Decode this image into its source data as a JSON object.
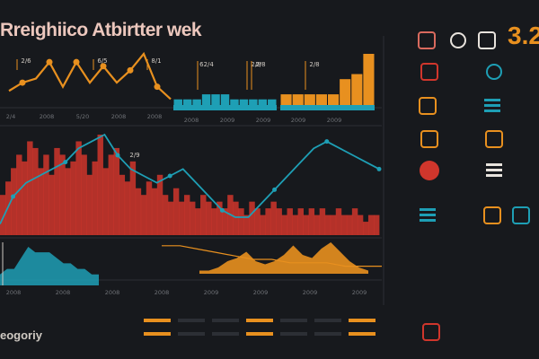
{
  "title": "Rreighiico Atbirtter wek",
  "corner_number": "3.2",
  "footer_label": "eogoriy",
  "colors": {
    "background": "#17191d",
    "title": "#ecc7bd",
    "orange": "#e8901f",
    "red": "#d0362c",
    "teal": "#1e9fb5",
    "light": "#cfc9c2",
    "muted": "#6f7277",
    "grid": "#2c2f35"
  },
  "chart_data": [
    {
      "type": "line",
      "panel": "top-left",
      "series": [
        {
          "color": "#e8901f",
          "values": [
            3,
            5,
            6,
            10,
            4,
            10,
            5,
            9,
            5,
            8,
            12,
            4,
            1
          ]
        }
      ],
      "data_labels": [
        "2/6",
        "6/5",
        "8/1"
      ],
      "tick_labels": [
        "2/4",
        "2008",
        "5/20",
        "2008",
        "2008"
      ]
    },
    {
      "type": "bar",
      "panel": "top-middle",
      "series": [
        {
          "color": "#1e9fb5",
          "values": [
            2,
            2,
            2,
            3,
            3,
            3,
            2,
            2,
            2,
            2,
            2
          ]
        }
      ],
      "data_labels": [
        "62/4",
        "2/8"
      ],
      "tick_labels": [
        "2008",
        "2009",
        "2009"
      ]
    },
    {
      "type": "bar",
      "panel": "top-right",
      "series": [
        {
          "color": "#e8901f",
          "values": [
            3,
            3,
            3,
            3,
            3,
            6,
            7,
            11
          ]
        }
      ],
      "data_labels": [
        "2/8",
        "2/8"
      ],
      "tick_labels": [
        "2009",
        "2009"
      ]
    },
    {
      "type": "area",
      "panel": "middle",
      "series": [
        {
          "color": "#d0362c",
          "values": [
            6,
            8,
            10,
            12,
            11,
            14,
            13,
            10,
            12,
            9,
            13,
            12,
            10,
            11,
            14,
            12,
            9,
            11,
            15,
            10,
            12,
            13,
            9,
            8,
            11,
            7,
            6,
            8,
            7,
            9,
            6,
            5,
            7,
            5,
            6,
            5,
            4,
            6,
            5,
            4,
            5,
            4,
            6,
            5,
            4,
            3,
            5,
            4,
            3,
            4,
            5,
            4,
            3,
            4,
            3,
            4,
            3,
            4,
            3,
            4,
            3,
            3,
            4,
            3,
            3,
            4,
            3,
            2,
            3,
            3
          ]
        }
      ]
    },
    {
      "type": "line",
      "panel": "middle",
      "series": [
        {
          "color": "#1e9fb5",
          "values": [
            2,
            6,
            8,
            9,
            10,
            11,
            13,
            14,
            15,
            12,
            10,
            9,
            8,
            9,
            10,
            8,
            6,
            4,
            3,
            3,
            5,
            7,
            9,
            11,
            13,
            14,
            13,
            12,
            11,
            10
          ]
        }
      ],
      "data_labels": [
        "2/9"
      ]
    },
    {
      "type": "area",
      "panel": "bottom-left",
      "series": [
        {
          "color": "#1e9fb5",
          "values": [
            2,
            3,
            3,
            5,
            7,
            6,
            6,
            6,
            5,
            4,
            4,
            3,
            3,
            2,
            2
          ]
        }
      ]
    },
    {
      "type": "area",
      "panel": "bottom-right",
      "series": [
        {
          "color": "#e8901f",
          "values": [
            1,
            1,
            2,
            4,
            5,
            7,
            4,
            3,
            4,
            6,
            9,
            6,
            5,
            8,
            10,
            7,
            4,
            2,
            1
          ]
        }
      ]
    },
    {
      "type": "line",
      "panel": "bottom",
      "series": [
        {
          "color": "#e8901f",
          "values": [
            9,
            9,
            8,
            7,
            6,
            5,
            5,
            4,
            4,
            4,
            3,
            3,
            3
          ]
        }
      ],
      "tick_labels": [
        "2008",
        "2008",
        "2008",
        "2008",
        "2009",
        "2009",
        "2009",
        "2009"
      ]
    }
  ],
  "sidebar_icons": [
    {
      "name": "fist-icon",
      "color": "#d96a5e"
    },
    {
      "name": "face-icon",
      "color": "#e8e3dd"
    },
    {
      "name": "bird-icon",
      "color": "#e8e3dd"
    },
    {
      "name": "chart-icon",
      "color": "#d0362c"
    },
    {
      "name": "target-icon",
      "color": "#1e9fb5"
    },
    {
      "name": "truck-icon",
      "color": "#e8901f"
    },
    {
      "name": "lines-icon",
      "color": "#1e9fb5"
    },
    {
      "name": "box-icon",
      "color": "#e8901f"
    },
    {
      "name": "people-icon",
      "color": "#e8901f"
    },
    {
      "name": "circle-badge-icon",
      "color": "#d0362c"
    },
    {
      "name": "stack-icon",
      "color": "#e8e3dd"
    },
    {
      "name": "list-icon",
      "color": "#1e9fb5"
    },
    {
      "name": "bottles-icon",
      "color": "#e8901f"
    },
    {
      "name": "jar-icon",
      "color": "#1e9fb5"
    },
    {
      "name": "pig-icon",
      "color": "#d0362c"
    }
  ]
}
